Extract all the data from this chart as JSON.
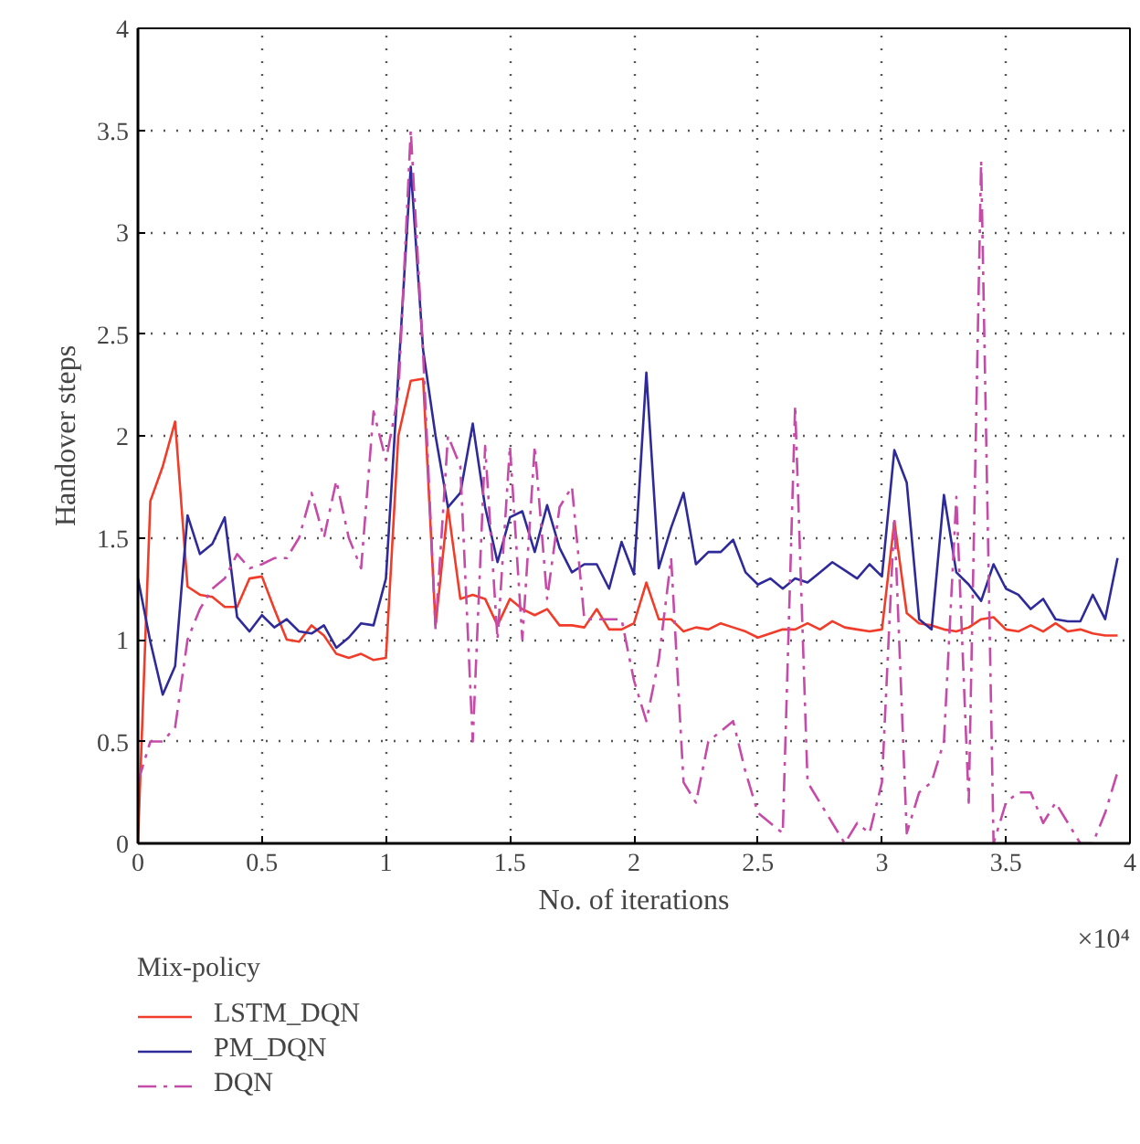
{
  "chart_data": {
    "type": "line",
    "xlabel": "No. of iterations",
    "ylabel": "Handover steps",
    "legend_title": "Mix-policy",
    "annotations": [
      "×10⁴"
    ],
    "xlim": [
      0,
      4
    ],
    "xticks": [
      0,
      0.5,
      1,
      1.5,
      2,
      2.5,
      3,
      3.5,
      4
    ],
    "ylim": [
      0,
      4
    ],
    "yticks": [
      0,
      0.5,
      1,
      1.5,
      2,
      2.5,
      3,
      3.5,
      4
    ],
    "grid": true,
    "legend": "bottom",
    "x": [
      0,
      0.05,
      0.1,
      0.15,
      0.2,
      0.25,
      0.3,
      0.35,
      0.4,
      0.45,
      0.5,
      0.55,
      0.6,
      0.65,
      0.7,
      0.75,
      0.8,
      0.85,
      0.9,
      0.95,
      1.0,
      1.05,
      1.1,
      1.15,
      1.2,
      1.25,
      1.3,
      1.35,
      1.4,
      1.45,
      1.5,
      1.55,
      1.6,
      1.65,
      1.7,
      1.75,
      1.8,
      1.85,
      1.9,
      1.95,
      2.0,
      2.05,
      2.1,
      2.15,
      2.2,
      2.25,
      2.3,
      2.35,
      2.4,
      2.45,
      2.5,
      2.55,
      2.6,
      2.65,
      2.7,
      2.75,
      2.8,
      2.85,
      2.9,
      2.95,
      3.0,
      3.05,
      3.1,
      3.15,
      3.2,
      3.25,
      3.3,
      3.35,
      3.4,
      3.45,
      3.5,
      3.55,
      3.6,
      3.65,
      3.7,
      3.75,
      3.8,
      3.85,
      3.9,
      3.95
    ],
    "series": [
      {
        "name": "LSTM_DQN",
        "color": "#f03c28",
        "line_style": "solid",
        "values": [
          0,
          1.68,
          1.85,
          2.07,
          1.26,
          1.22,
          1.21,
          1.16,
          1.16,
          1.3,
          1.31,
          1.15,
          1.0,
          0.99,
          1.07,
          1.02,
          0.93,
          0.91,
          0.93,
          0.9,
          0.91,
          2.0,
          2.27,
          2.28,
          1.07,
          1.65,
          1.2,
          1.22,
          1.2,
          1.07,
          1.2,
          1.15,
          1.12,
          1.15,
          1.07,
          1.07,
          1.06,
          1.15,
          1.05,
          1.05,
          1.08,
          1.28,
          1.1,
          1.1,
          1.04,
          1.06,
          1.05,
          1.08,
          1.06,
          1.04,
          1.01,
          1.03,
          1.05,
          1.05,
          1.08,
          1.05,
          1.09,
          1.06,
          1.05,
          1.04,
          1.05,
          1.58,
          1.13,
          1.08,
          1.07,
          1.05,
          1.04,
          1.06,
          1.1,
          1.11,
          1.05,
          1.04,
          1.07,
          1.04,
          1.08,
          1.04,
          1.05,
          1.03,
          1.02,
          1.02
        ]
      },
      {
        "name": "PM_DQN",
        "color": "#2e2a9a",
        "line_style": "solid",
        "values": [
          1.3,
          0.99,
          0.73,
          0.87,
          1.61,
          1.42,
          1.47,
          1.6,
          1.11,
          1.04,
          1.12,
          1.06,
          1.1,
          1.04,
          1.03,
          1.07,
          0.96,
          1.01,
          1.08,
          1.07,
          1.3,
          2.3,
          3.32,
          2.42,
          2.0,
          1.65,
          1.72,
          2.06,
          1.65,
          1.38,
          1.6,
          1.63,
          1.43,
          1.66,
          1.45,
          1.33,
          1.37,
          1.37,
          1.25,
          1.48,
          1.32,
          2.31,
          1.35,
          1.55,
          1.72,
          1.37,
          1.43,
          1.43,
          1.49,
          1.33,
          1.27,
          1.3,
          1.25,
          1.3,
          1.28,
          1.33,
          1.38,
          1.34,
          1.3,
          1.37,
          1.31,
          1.93,
          1.77,
          1.1,
          1.05,
          1.71,
          1.33,
          1.27,
          1.19,
          1.37,
          1.25,
          1.22,
          1.15,
          1.2,
          1.1,
          1.09,
          1.09,
          1.22,
          1.1,
          1.4
        ]
      },
      {
        "name": "DQN",
        "color": "#c64aa8",
        "line_style": "dashdot",
        "values": [
          0.3,
          0.5,
          0.5,
          0.57,
          1.0,
          1.15,
          1.25,
          1.3,
          1.42,
          1.35,
          1.37,
          1.4,
          1.4,
          1.5,
          1.72,
          1.5,
          1.78,
          1.5,
          1.35,
          2.12,
          1.88,
          2.2,
          3.5,
          2.4,
          1.05,
          2.0,
          1.85,
          0.5,
          1.95,
          1.0,
          1.95,
          1.0,
          1.95,
          1.2,
          1.65,
          1.75,
          1.1,
          1.1,
          1.1,
          1.1,
          0.8,
          0.6,
          0.9,
          1.4,
          0.3,
          0.2,
          0.5,
          0.55,
          0.6,
          0.35,
          0.15,
          0.1,
          0.05,
          2.15,
          0.3,
          0.2,
          0.1,
          0.0,
          0.1,
          0.05,
          0.3,
          1.6,
          0.05,
          0.25,
          0.3,
          0.5,
          1.7,
          0.2,
          3.35,
          0.0,
          0.2,
          0.25,
          0.25,
          0.1,
          0.2,
          0.1,
          0.0,
          0.0,
          0.15,
          0.35
        ]
      }
    ]
  }
}
